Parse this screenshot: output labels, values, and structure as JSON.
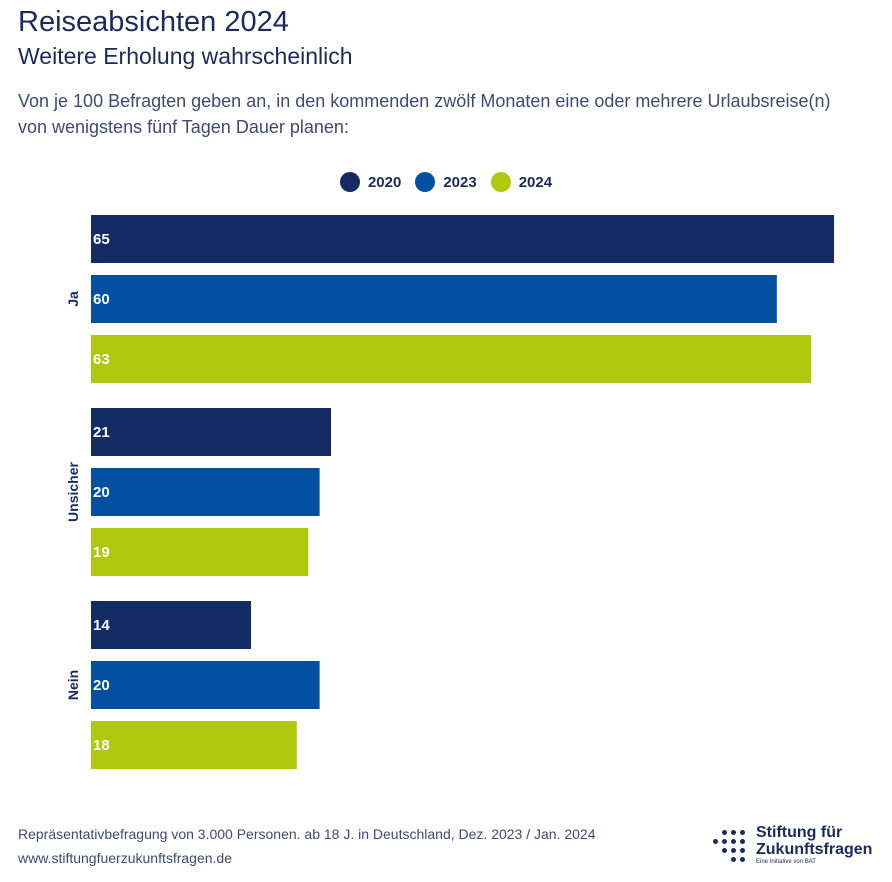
{
  "header": {
    "title": "Reiseabsichten 2024",
    "subtitle": "Weitere Erholung wahrscheinlich",
    "description": "Von je 100 Befragten geben an, in den kommenden zwölf Monaten eine oder mehrere Urlaubsreise(n) von wenigstens fünf Tagen Dauer planen:"
  },
  "chart_data": {
    "type": "bar",
    "orientation": "horizontal",
    "title": "Reiseabsichten 2024",
    "subtitle": "Weitere Erholung wahrscheinlich",
    "categories": [
      "Ja",
      "Unsicher",
      "Nein"
    ],
    "series": [
      {
        "name": "2020",
        "color": "#152b63",
        "values": [
          65,
          21,
          14
        ]
      },
      {
        "name": "2023",
        "color": "#0350a0",
        "values": [
          60,
          20,
          20
        ]
      },
      {
        "name": "2024",
        "color": "#adc90d",
        "values": [
          63,
          19,
          18
        ]
      }
    ],
    "xlim": [
      0,
      65
    ],
    "legend_position": "top-center",
    "grid": false,
    "data_labels": true
  },
  "footer": {
    "note": "Repräsentativbefragung von 3.000 Personen. ab 18 J. in Deutschland, Dez. 2023 / Jan. 2024",
    "url": "www.stiftungfuerzukunftsfragen.de"
  },
  "logo": {
    "line1": "Stiftung für",
    "line2": "Zukunftsfragen",
    "tagline": "Eine Initiative von BAT"
  }
}
